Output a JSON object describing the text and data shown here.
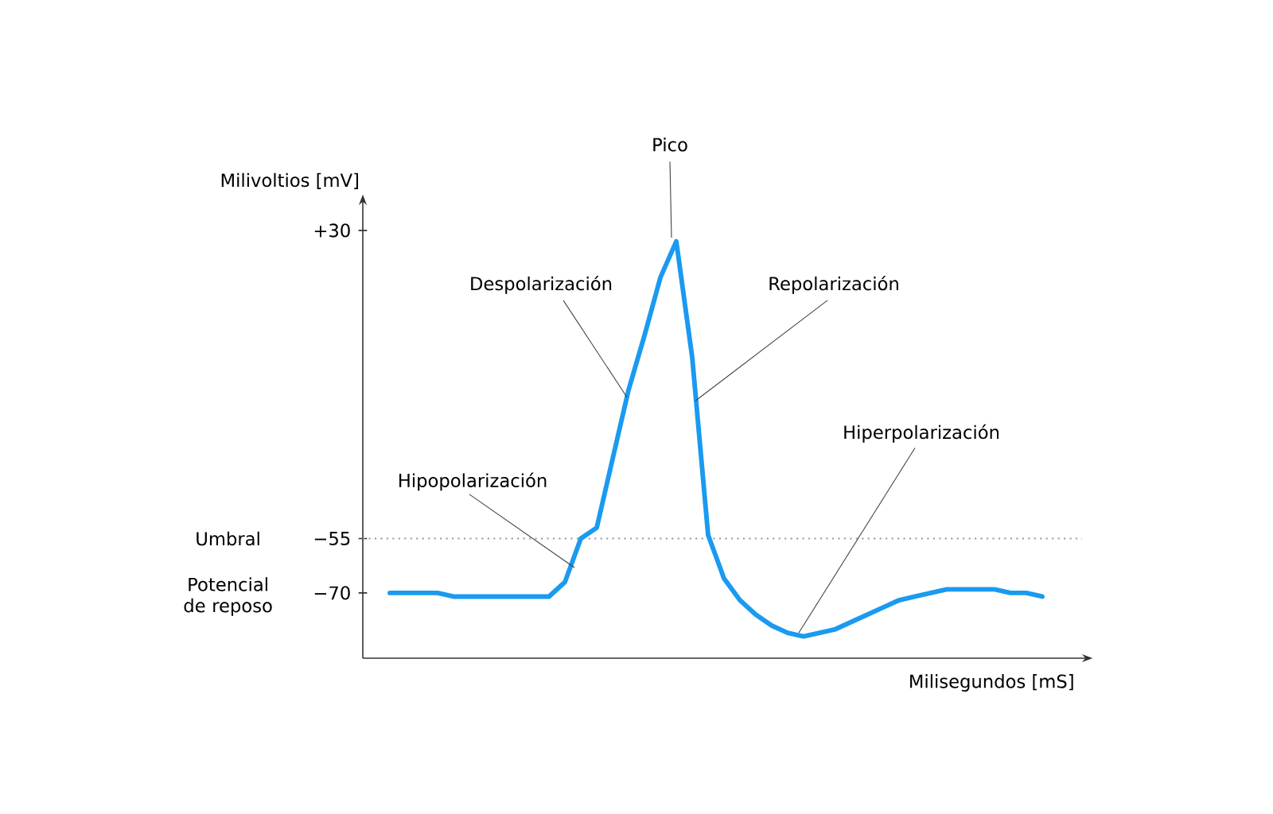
{
  "chart_data": {
    "type": "line",
    "xlabel": "Milisegundos [mS]",
    "ylabel": "Milivoltios [mV]",
    "categories": [
      null,
      null,
      null,
      null,
      null,
      null,
      null,
      null,
      null,
      null,
      null,
      null,
      null,
      null,
      null,
      null,
      null,
      null,
      null,
      null,
      null,
      null,
      null,
      null,
      null,
      null,
      null,
      null,
      null,
      null,
      null,
      null,
      null,
      null,
      null,
      null,
      null,
      null,
      null,
      null,
      null,
      null
    ],
    "series": [
      {
        "color": "#1a9af0",
        "values": [
          -70,
          -70,
          -70,
          -70,
          -71,
          -71,
          -71,
          -71,
          -71,
          -71,
          -71,
          -67,
          -55,
          -52,
          -33,
          -14,
          1,
          17,
          27,
          -5,
          -54,
          -66,
          -72,
          -76,
          -79,
          -81,
          -82,
          -81,
          -80,
          -78,
          -76,
          -74,
          -72,
          -71,
          -70,
          -69,
          -69,
          -69,
          -69,
          -70,
          -70,
          -71
        ]
      }
    ],
    "ylim": [
      -88,
      37
    ],
    "yticks": [
      {
        "value": 30,
        "label": "+30"
      },
      {
        "value": -55,
        "label": "−55"
      },
      {
        "value": -70,
        "label": "−70"
      }
    ],
    "ref_lines": [
      {
        "axis": "y",
        "value": -55,
        "color": "#999999",
        "line_style": "dotted"
      }
    ],
    "annotations": [
      "Pico",
      "Despolarización",
      "Repolarización",
      "Hipopolarización",
      "Hiperpolarización",
      "Potencial de reposo",
      "Umbral"
    ]
  }
}
